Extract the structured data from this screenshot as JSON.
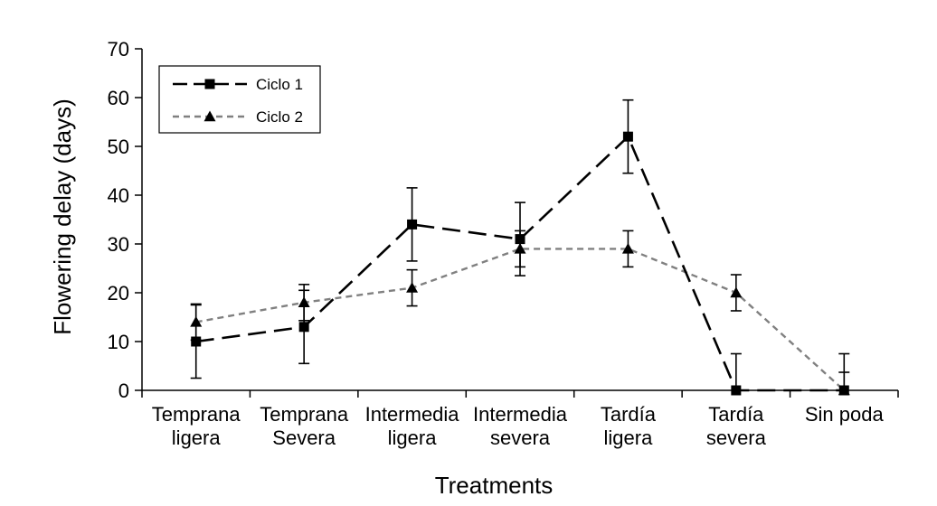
{
  "chart_data": {
    "type": "line",
    "title": "",
    "xlabel": "Treatments",
    "ylabel": "Flowering delay (days)",
    "ylim": [
      0,
      70
    ],
    "yticks": [
      0,
      10,
      20,
      30,
      40,
      50,
      60,
      70
    ],
    "grid": false,
    "legend_position": "top-left",
    "categories": [
      [
        "Temprana",
        "ligera"
      ],
      [
        "Temprana",
        "Severa"
      ],
      [
        "Intermedia",
        "ligera"
      ],
      [
        "Intermedia",
        "severa"
      ],
      [
        "Tardía",
        "ligera"
      ],
      [
        "Tardía",
        "severa"
      ],
      [
        "Sin poda"
      ]
    ],
    "series": [
      {
        "name": "Ciclo 1",
        "color": "#000000",
        "marker": "square",
        "dash": "long-dash",
        "values": [
          10,
          13,
          34,
          31,
          52,
          0,
          0
        ],
        "errors": [
          7.5,
          7.5,
          7.5,
          7.5,
          7.5,
          7.5,
          7.5
        ]
      },
      {
        "name": "Ciclo 2",
        "color": "#808080",
        "marker": "triangle",
        "dash": "short-dash",
        "values": [
          14,
          18,
          21,
          29,
          29,
          20,
          0
        ],
        "errors": [
          3.7,
          3.7,
          3.7,
          3.7,
          3.7,
          3.7,
          3.7
        ]
      }
    ]
  }
}
